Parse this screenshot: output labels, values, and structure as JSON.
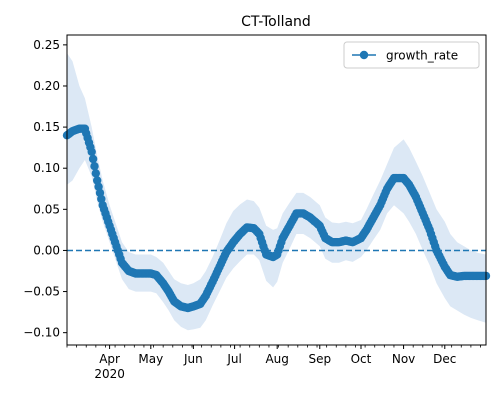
{
  "chart_data": {
    "type": "line",
    "title": "CT-Tolland",
    "xlabel": "",
    "ylabel": "",
    "x_start": "2020-03-01",
    "x_end": "2020-12-31",
    "xlim": [
      "2020-03-01",
      "2020-12-31"
    ],
    "ylim": [
      -0.115,
      0.262
    ],
    "y_ticks": [
      -0.1,
      -0.05,
      0.0,
      0.05,
      0.1,
      0.15,
      0.2,
      0.25
    ],
    "y_tick_labels": [
      "−0.10",
      "−0.05",
      "0.00",
      "0.05",
      "0.10",
      "0.15",
      "0.20",
      "0.25"
    ],
    "x_ticks": [
      {
        "date": "2020-04-01",
        "label": "Apr",
        "sublabel": "2020"
      },
      {
        "date": "2020-05-01",
        "label": "May"
      },
      {
        "date": "2020-06-01",
        "label": "Jun"
      },
      {
        "date": "2020-07-01",
        "label": "Jul"
      },
      {
        "date": "2020-08-01",
        "label": "Aug"
      },
      {
        "date": "2020-09-01",
        "label": "Sep"
      },
      {
        "date": "2020-10-01",
        "label": "Oct"
      },
      {
        "date": "2020-11-01",
        "label": "Nov"
      },
      {
        "date": "2020-12-01",
        "label": "Dec"
      }
    ],
    "reference_line": {
      "y": 0.0,
      "style": "dashed",
      "color": "#1f77b4"
    },
    "grid": false,
    "legend": {
      "position": "top-right"
    },
    "series": [
      {
        "name": "growth_rate",
        "marker": "circle",
        "color": "#1f77b4",
        "band_color": "#dce8f5",
        "x": [
          "2020-03-01",
          "2020-03-05",
          "2020-03-10",
          "2020-03-14",
          "2020-03-19",
          "2020-03-23",
          "2020-03-27",
          "2020-04-01",
          "2020-04-06",
          "2020-04-10",
          "2020-04-15",
          "2020-04-20",
          "2020-04-25",
          "2020-05-01",
          "2020-05-05",
          "2020-05-10",
          "2020-05-14",
          "2020-05-18",
          "2020-05-23",
          "2020-05-28",
          "2020-06-01",
          "2020-06-06",
          "2020-06-10",
          "2020-06-15",
          "2020-06-20",
          "2020-06-25",
          "2020-06-30",
          "2020-07-05",
          "2020-07-10",
          "2020-07-15",
          "2020-07-19",
          "2020-07-24",
          "2020-07-29",
          "2020-08-01",
          "2020-08-05",
          "2020-08-10",
          "2020-08-15",
          "2020-08-20",
          "2020-08-25",
          "2020-09-01",
          "2020-09-05",
          "2020-09-10",
          "2020-09-15",
          "2020-09-20",
          "2020-09-25",
          "2020-10-01",
          "2020-10-05",
          "2020-10-10",
          "2020-10-15",
          "2020-10-20",
          "2020-10-25",
          "2020-11-01",
          "2020-11-05",
          "2020-11-10",
          "2020-11-15",
          "2020-11-20",
          "2020-11-25",
          "2020-12-01",
          "2020-12-05",
          "2020-12-10",
          "2020-12-15",
          "2020-12-20",
          "2020-12-25",
          "2020-12-31"
        ],
        "values": [
          0.14,
          0.145,
          0.148,
          0.148,
          0.12,
          0.085,
          0.055,
          0.03,
          0.005,
          -0.015,
          -0.025,
          -0.028,
          -0.028,
          -0.028,
          -0.03,
          -0.04,
          -0.05,
          -0.062,
          -0.068,
          -0.07,
          -0.068,
          -0.065,
          -0.055,
          -0.038,
          -0.02,
          -0.002,
          0.01,
          0.02,
          0.028,
          0.027,
          0.02,
          -0.005,
          -0.008,
          -0.005,
          0.015,
          0.03,
          0.045,
          0.045,
          0.04,
          0.03,
          0.015,
          0.01,
          0.01,
          0.012,
          0.01,
          0.015,
          0.025,
          0.04,
          0.055,
          0.075,
          0.088,
          0.088,
          0.08,
          0.065,
          0.045,
          0.025,
          0.0,
          -0.02,
          -0.03,
          -0.032,
          -0.031,
          -0.031,
          -0.031,
          -0.031
        ],
        "band_upper": [
          0.24,
          0.23,
          0.2,
          0.185,
          0.15,
          0.115,
          0.085,
          0.055,
          0.03,
          0.01,
          -0.002,
          -0.005,
          -0.005,
          -0.005,
          -0.008,
          -0.015,
          -0.025,
          -0.035,
          -0.04,
          -0.042,
          -0.04,
          -0.035,
          -0.025,
          -0.008,
          0.012,
          0.033,
          0.048,
          0.056,
          0.062,
          0.06,
          0.052,
          0.03,
          0.025,
          0.027,
          0.045,
          0.058,
          0.07,
          0.07,
          0.065,
          0.055,
          0.04,
          0.034,
          0.033,
          0.035,
          0.033,
          0.037,
          0.05,
          0.068,
          0.085,
          0.105,
          0.125,
          0.135,
          0.125,
          0.108,
          0.09,
          0.07,
          0.05,
          0.035,
          0.02,
          0.01,
          0.005,
          0.0,
          -0.003,
          -0.005
        ],
        "band_lower": [
          0.08,
          0.085,
          0.1,
          0.11,
          0.09,
          0.06,
          0.035,
          0.01,
          -0.015,
          -0.035,
          -0.047,
          -0.05,
          -0.05,
          -0.05,
          -0.052,
          -0.063,
          -0.073,
          -0.085,
          -0.093,
          -0.097,
          -0.096,
          -0.094,
          -0.085,
          -0.067,
          -0.05,
          -0.033,
          -0.022,
          -0.013,
          -0.005,
          -0.005,
          -0.012,
          -0.037,
          -0.045,
          -0.038,
          -0.015,
          0.002,
          0.02,
          0.02,
          0.015,
          0.005,
          -0.01,
          -0.015,
          -0.015,
          -0.012,
          -0.014,
          -0.008,
          0.0,
          0.013,
          0.025,
          0.045,
          0.055,
          0.045,
          0.035,
          0.02,
          0.0,
          -0.018,
          -0.04,
          -0.058,
          -0.068,
          -0.073,
          -0.078,
          -0.082,
          -0.085,
          -0.088
        ]
      }
    ]
  }
}
